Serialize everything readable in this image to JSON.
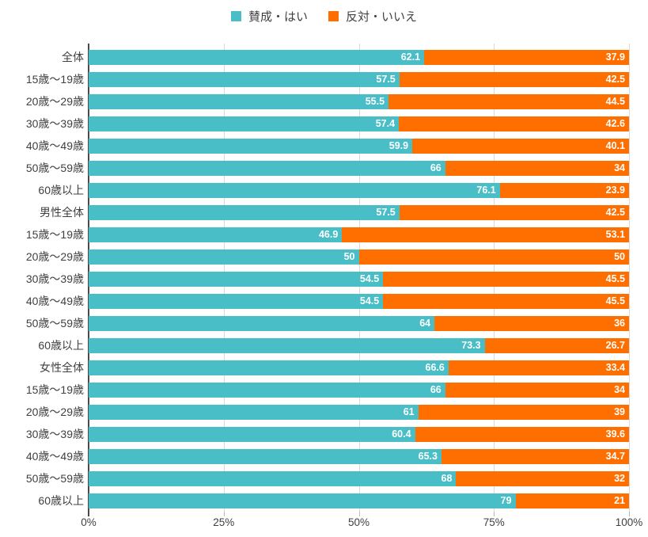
{
  "chart_data": {
    "type": "bar",
    "orientation": "horizontal",
    "stacked": true,
    "title": "",
    "xlabel": "",
    "ylabel": "",
    "xlim": [
      0,
      100
    ],
    "x_ticks": [
      "0%",
      "25%",
      "50%",
      "75%",
      "100%"
    ],
    "grid": true,
    "legend_position": "top",
    "categories": [
      "全体",
      "15歳〜19歳",
      "20歳〜29歳",
      "30歳〜39歳",
      "40歳〜49歳",
      "50歳〜59歳",
      "60歳以上",
      "男性全体",
      "15歳〜19歳",
      "20歳〜29歳",
      "30歳〜39歳",
      "40歳〜49歳",
      "50歳〜59歳",
      "60歳以上",
      "女性全体",
      "15歳〜19歳",
      "20歳〜29歳",
      "30歳〜39歳",
      "40歳〜49歳",
      "50歳〜59歳",
      "60歳以上"
    ],
    "series": [
      {
        "name": "賛成・はい",
        "color": "#4ABEC6",
        "values": [
          62.1,
          57.5,
          55.5,
          57.4,
          59.9,
          66,
          76.1,
          57.5,
          46.9,
          50,
          54.5,
          54.5,
          64,
          73.3,
          66.6,
          66,
          61,
          60.4,
          65.3,
          68,
          79
        ]
      },
      {
        "name": "反対・いいえ",
        "color": "#FF6F00",
        "values": [
          37.9,
          42.5,
          44.5,
          42.6,
          40.1,
          34,
          23.9,
          42.5,
          53.1,
          50,
          45.5,
          45.5,
          36,
          26.7,
          33.4,
          34,
          39,
          39.6,
          34.7,
          32,
          21
        ]
      }
    ],
    "colors": {
      "grid": "#d9d9d9",
      "axis": "#4a4a4a",
      "text": "#404040",
      "value_label": "#ffffff"
    }
  }
}
